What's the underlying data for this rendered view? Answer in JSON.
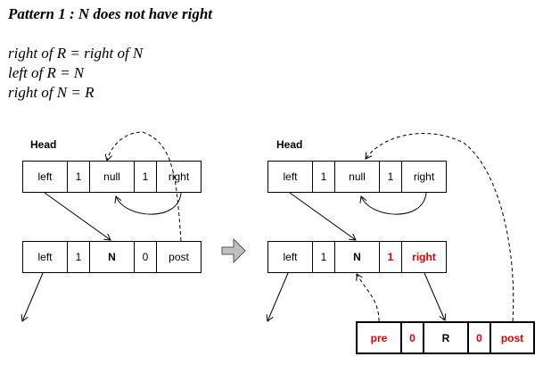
{
  "title": "Pattern 1 : N does not have right",
  "formulas": [
    "right of R = right of N",
    "left of R = N",
    "right of N = R"
  ],
  "left_diagram": {
    "head_label": "Head",
    "head_node": [
      "left",
      "1",
      "null",
      "1",
      "right"
    ],
    "n_node": [
      "left",
      "1",
      "N",
      "0",
      "post"
    ]
  },
  "right_diagram": {
    "head_label": "Head",
    "head_node": [
      "left",
      "1",
      "null",
      "1",
      "right"
    ],
    "n_node": [
      "left",
      "1",
      "N",
      "1",
      "right"
    ],
    "r_node": [
      "pre",
      "0",
      "R",
      "0",
      "post"
    ]
  },
  "colors": {
    "highlight": "#e00000",
    "line": "#000000",
    "transition_arrow": "#c0c0c0"
  },
  "icons": {
    "transition": "right-arrow-icon"
  }
}
